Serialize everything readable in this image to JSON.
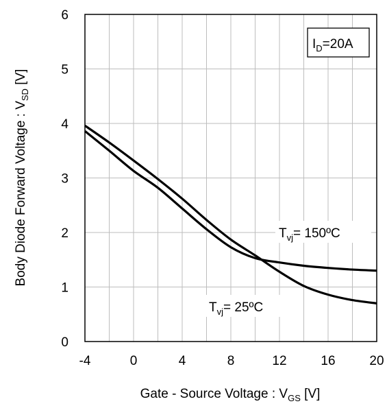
{
  "chart_data": {
    "type": "line",
    "xlabel": {
      "main": "Gate - Source Voltage : V",
      "sub": "GS",
      "unit": " [V]"
    },
    "ylabel": {
      "main": "Body Diode  Forward Voltage : V",
      "sub": "SD",
      "unit": " [V]"
    },
    "xlim": [
      -4,
      20
    ],
    "ylim": [
      0,
      6
    ],
    "xticks": [
      -4,
      0,
      4,
      8,
      12,
      16,
      20
    ],
    "yticks": [
      0,
      1,
      2,
      3,
      4,
      5,
      6
    ],
    "x_minor_step": 2,
    "y_minor_step": 1,
    "grid": true,
    "condition_box": {
      "main": "I",
      "sub": "D",
      "rest": "=20A"
    },
    "series": [
      {
        "name": "T_vj= 25ºC",
        "label": {
          "main": "T",
          "sub": "vj",
          "rest": "= 25ºC"
        },
        "x": [
          -4,
          -2,
          0,
          2,
          4,
          6,
          8,
          10,
          12,
          14,
          16,
          18,
          20
        ],
        "y": [
          3.96,
          3.65,
          3.32,
          2.98,
          2.62,
          2.23,
          1.87,
          1.58,
          1.28,
          1.02,
          0.86,
          0.76,
          0.7
        ]
      },
      {
        "name": "T_vj= 150ºC",
        "label": {
          "main": "T",
          "sub": "vj",
          "rest": "= 150ºC"
        },
        "x": [
          -4,
          -2,
          0,
          2,
          4,
          6,
          8,
          10,
          12,
          14,
          16,
          18,
          20
        ],
        "y": [
          3.86,
          3.5,
          3.13,
          2.82,
          2.44,
          2.06,
          1.73,
          1.53,
          1.45,
          1.39,
          1.35,
          1.32,
          1.3
        ]
      }
    ]
  }
}
